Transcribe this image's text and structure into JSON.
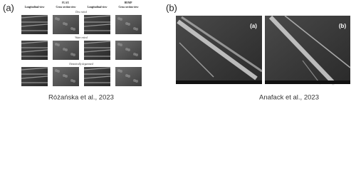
{
  "panel_a": {
    "label": "(a)",
    "groups": [
      "FLAX",
      "HEMP"
    ],
    "columns": [
      "Longitudinal view",
      "Cross section view",
      "Longitudinal view",
      "Cross section view"
    ],
    "rows": [
      "Dew retted",
      "Water retted",
      "Osmotically degummed"
    ],
    "caption": "Różańska et al., 2023"
  },
  "panel_b": {
    "label": "(b)",
    "images": [
      "(a)",
      "(b)"
    ],
    "caption": "Anafack et al., 2023"
  }
}
